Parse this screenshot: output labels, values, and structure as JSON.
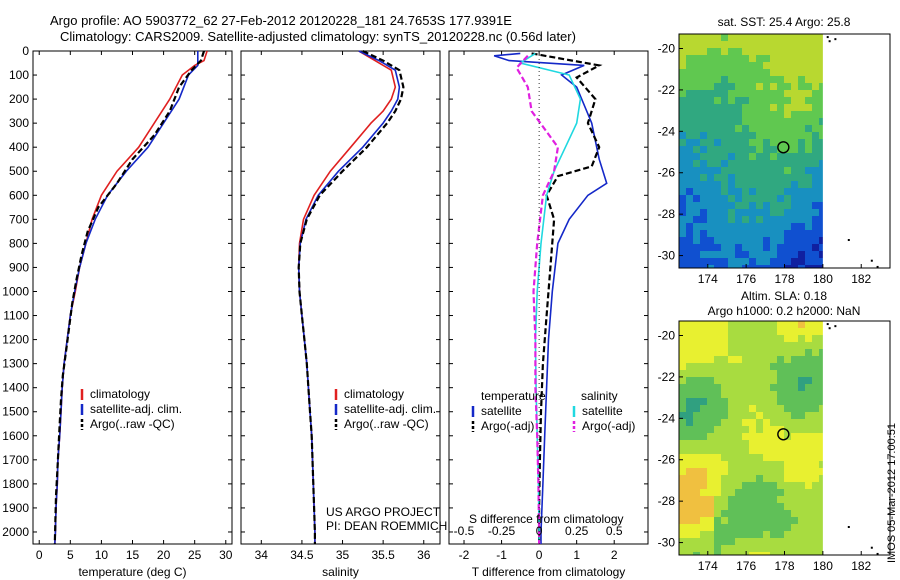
{
  "header": {
    "line1": "Argo profile: AO 5903772_62 27-Feb-2012 20120228_181 24.7653S 177.9391E",
    "line2": "Climatology: CARS2009. Satellite-adjusted climatology: synTS_20120228.nc (0.56d later)"
  },
  "colors": {
    "climatology": "#e02020",
    "satellite": "#1428c8",
    "argo": "#000000",
    "salinity_satellite": "#20d8e0",
    "salinity_argo": "#e020e0"
  },
  "chart_data": [
    {
      "type": "line",
      "panel": "temperature",
      "xlabel": "temperature (deg C)",
      "ylim": [
        0,
        2050
      ],
      "xlim": [
        -1,
        31
      ],
      "xticks": [
        0,
        5,
        10,
        15,
        20,
        25,
        30
      ],
      "yticks": [
        0,
        100,
        200,
        300,
        400,
        500,
        600,
        700,
        800,
        900,
        1000,
        1100,
        1200,
        1300,
        1400,
        1500,
        1600,
        1700,
        1800,
        1900,
        2000
      ],
      "legend": [
        "climatology",
        "satellite-adj. clim.",
        "Argo(..raw -QC)"
      ],
      "series": [
        {
          "name": "climatology",
          "style": "solid",
          "color_key": "climatology",
          "points": [
            [
              27,
              0
            ],
            [
              26.5,
              40
            ],
            [
              25,
              60
            ],
            [
              23,
              100
            ],
            [
              21,
              200
            ],
            [
              18.5,
              300
            ],
            [
              16,
              400
            ],
            [
              12.5,
              500
            ],
            [
              10,
              600
            ],
            [
              8.5,
              700
            ],
            [
              7.5,
              800
            ],
            [
              6.5,
              900
            ],
            [
              5.8,
              1000
            ],
            [
              5,
              1100
            ],
            [
              4.5,
              1200
            ],
            [
              4,
              1300
            ],
            [
              3.7,
              1400
            ],
            [
              3.5,
              1500
            ],
            [
              3.3,
              1600
            ],
            [
              3,
              1700
            ],
            [
              2.9,
              1800
            ],
            [
              2.7,
              1900
            ],
            [
              2.6,
              2000
            ],
            [
              2.5,
              2050
            ]
          ]
        },
        {
          "name": "satellite-adj. clim.",
          "style": "solid",
          "color_key": "satellite",
          "points": [
            [
              25.5,
              0
            ],
            [
              25.5,
              60
            ],
            [
              24,
              100
            ],
            [
              22.5,
              200
            ],
            [
              20,
              300
            ],
            [
              17.5,
              400
            ],
            [
              14,
              500
            ],
            [
              11,
              600
            ],
            [
              9,
              700
            ],
            [
              7.5,
              800
            ],
            [
              6.5,
              900
            ],
            [
              5.7,
              1000
            ],
            [
              5,
              1100
            ],
            [
              4.5,
              1200
            ],
            [
              4,
              1300
            ],
            [
              3.7,
              1400
            ],
            [
              3.5,
              1500
            ],
            [
              3.3,
              1600
            ],
            [
              3,
              1700
            ],
            [
              2.9,
              1800
            ],
            [
              2.7,
              1900
            ],
            [
              2.6,
              2000
            ],
            [
              2.5,
              2050
            ]
          ]
        },
        {
          "name": "Argo(..raw -QC)",
          "style": "dashed",
          "color_key": "argo",
          "points": [
            [
              26.5,
              0
            ],
            [
              26,
              40
            ],
            [
              24.5,
              80
            ],
            [
              22.5,
              150
            ],
            [
              21,
              250
            ],
            [
              18.5,
              350
            ],
            [
              15,
              450
            ],
            [
              12.5,
              550
            ],
            [
              9.5,
              650
            ],
            [
              7.8,
              750
            ],
            [
              6.8,
              850
            ],
            [
              6,
              950
            ],
            [
              5.3,
              1050
            ],
            [
              4.8,
              1150
            ],
            [
              4.3,
              1250
            ],
            [
              3.8,
              1350
            ],
            [
              3.5,
              1450
            ],
            [
              3.3,
              1550
            ],
            [
              3.1,
              1650
            ],
            [
              2.9,
              1750
            ],
            [
              2.7,
              1850
            ],
            [
              2.6,
              1950
            ],
            [
              2.5,
              2050
            ]
          ]
        }
      ]
    },
    {
      "type": "line",
      "panel": "salinity",
      "xlabel": "salinity",
      "ylim": [
        0,
        2050
      ],
      "xlim": [
        33.75,
        36.2
      ],
      "xticks": [
        34,
        34.5,
        35,
        35.5,
        36
      ],
      "legend": [
        "climatology",
        "satellite-adj. clim.",
        "Argo(..raw -QC)"
      ],
      "annotation": [
        "US ARGO PROJECT",
        "PI: DEAN ROEMMICH"
      ],
      "series": [
        {
          "name": "climatology",
          "style": "solid",
          "color_key": "climatology",
          "points": [
            [
              35.2,
              0
            ],
            [
              35.4,
              40
            ],
            [
              35.6,
              80
            ],
            [
              35.65,
              150
            ],
            [
              35.6,
              200
            ],
            [
              35.5,
              250
            ],
            [
              35.35,
              300
            ],
            [
              35.1,
              400
            ],
            [
              34.85,
              500
            ],
            [
              34.65,
              600
            ],
            [
              34.52,
              700
            ],
            [
              34.47,
              800
            ],
            [
              34.46,
              900
            ],
            [
              34.47,
              1000
            ],
            [
              34.5,
              1100
            ],
            [
              34.53,
              1200
            ],
            [
              34.56,
              1300
            ],
            [
              34.58,
              1400
            ],
            [
              34.6,
              1500
            ],
            [
              34.62,
              1600
            ],
            [
              34.63,
              1700
            ],
            [
              34.64,
              1800
            ],
            [
              34.65,
              1900
            ],
            [
              34.66,
              2000
            ],
            [
              34.66,
              2050
            ]
          ]
        },
        {
          "name": "satellite-adj. clim.",
          "style": "solid",
          "color_key": "satellite",
          "points": [
            [
              35.2,
              0
            ],
            [
              35.45,
              40
            ],
            [
              35.65,
              80
            ],
            [
              35.7,
              150
            ],
            [
              35.68,
              200
            ],
            [
              35.6,
              250
            ],
            [
              35.5,
              300
            ],
            [
              35.25,
              400
            ],
            [
              34.95,
              500
            ],
            [
              34.7,
              600
            ],
            [
              34.55,
              700
            ],
            [
              34.48,
              800
            ],
            [
              34.46,
              900
            ],
            [
              34.47,
              1000
            ],
            [
              34.5,
              1100
            ],
            [
              34.53,
              1200
            ],
            [
              34.56,
              1300
            ],
            [
              34.58,
              1400
            ],
            [
              34.6,
              1500
            ],
            [
              34.62,
              1600
            ],
            [
              34.63,
              1700
            ],
            [
              34.64,
              1800
            ],
            [
              34.65,
              1900
            ],
            [
              34.66,
              2000
            ],
            [
              34.66,
              2050
            ]
          ]
        },
        {
          "name": "Argo(..raw -QC)",
          "style": "dashed",
          "color_key": "argo",
          "points": [
            [
              35.25,
              0
            ],
            [
              35.5,
              40
            ],
            [
              35.7,
              80
            ],
            [
              35.75,
              150
            ],
            [
              35.72,
              200
            ],
            [
              35.65,
              250
            ],
            [
              35.55,
              300
            ],
            [
              35.3,
              400
            ],
            [
              35,
              500
            ],
            [
              34.72,
              600
            ],
            [
              34.56,
              700
            ],
            [
              34.48,
              800
            ],
            [
              34.46,
              900
            ],
            [
              34.47,
              1000
            ],
            [
              34.5,
              1100
            ],
            [
              34.53,
              1200
            ],
            [
              34.56,
              1300
            ],
            [
              34.58,
              1400
            ],
            [
              34.6,
              1500
            ],
            [
              34.62,
              1600
            ],
            [
              34.63,
              1700
            ],
            [
              34.64,
              1800
            ],
            [
              34.65,
              1900
            ],
            [
              34.66,
              2000
            ],
            [
              34.66,
              2050
            ]
          ]
        }
      ]
    },
    {
      "type": "line",
      "panel": "difference",
      "xlabel": "T difference from climatology",
      "xlabel_top": "S difference from climatology",
      "ylim": [
        0,
        2050
      ],
      "xlim": [
        -2.4,
        2.9
      ],
      "xticks": [
        -2,
        -1,
        0,
        1,
        2
      ],
      "xticks_top": [
        "-0.5",
        "-0.25",
        "0",
        "0.25",
        "0.5"
      ],
      "legend_left_title": "temperature",
      "legend_left": [
        "satellite",
        "Argo(-adj)"
      ],
      "legend_right_title": "salinity",
      "legend_right": [
        "satellite",
        "Argo(-adj)"
      ],
      "series": [
        {
          "name": "satellite",
          "group": "temperature",
          "style": "solid",
          "color_key": "satellite",
          "points": [
            [
              -0.5,
              10
            ],
            [
              -1.2,
              20
            ],
            [
              -0.8,
              40
            ],
            [
              1.2,
              60
            ],
            [
              0.6,
              100
            ],
            [
              1.0,
              150
            ],
            [
              1.4,
              300
            ],
            [
              1.6,
              450
            ],
            [
              1.8,
              550
            ],
            [
              1.3,
              600
            ],
            [
              0.8,
              700
            ],
            [
              0.5,
              800
            ],
            [
              0.35,
              1000
            ],
            [
              0.25,
              1200
            ],
            [
              0.2,
              1400
            ],
            [
              0.15,
              1600
            ],
            [
              0.1,
              1800
            ],
            [
              0.05,
              2000
            ],
            [
              0.05,
              2050
            ]
          ]
        },
        {
          "name": "Argo(-adj)",
          "group": "temperature",
          "style": "dashed",
          "color_key": "argo",
          "points": [
            [
              -0.2,
              10
            ],
            [
              1.6,
              60
            ],
            [
              1.0,
              110
            ],
            [
              1.5,
              200
            ],
            [
              1.3,
              300
            ],
            [
              1.6,
              400
            ],
            [
              1.4,
              480
            ],
            [
              0.5,
              520
            ],
            [
              0.2,
              600
            ],
            [
              0.4,
              700
            ],
            [
              0.3,
              900
            ],
            [
              0.2,
              1100
            ],
            [
              0.1,
              1300
            ],
            [
              0.05,
              1500
            ],
            [
              0.02,
              1700
            ],
            [
              0,
              1900
            ],
            [
              0,
              2050
            ]
          ]
        },
        {
          "name": "satellite",
          "group": "salinity",
          "style": "solid",
          "color_key": "salinity_satellite",
          "points": [
            [
              -0.1,
              10
            ],
            [
              -0.5,
              50
            ],
            [
              0.8,
              100
            ],
            [
              1.1,
              200
            ],
            [
              1.0,
              300
            ],
            [
              0.7,
              400
            ],
            [
              0.4,
              500
            ],
            [
              0.2,
              600
            ],
            [
              0.05,
              800
            ],
            [
              -0.05,
              1000
            ],
            [
              -0.1,
              1200
            ],
            [
              -0.08,
              1400
            ],
            [
              -0.05,
              1600
            ],
            [
              -0.02,
              1800
            ],
            [
              0,
              2000
            ],
            [
              0,
              2050
            ]
          ]
        },
        {
          "name": "Argo(-adj)",
          "group": "salinity",
          "style": "dashed",
          "color_key": "salinity_argo",
          "points": [
            [
              -0.3,
              20
            ],
            [
              -0.6,
              70
            ],
            [
              -0.3,
              150
            ],
            [
              -0.2,
              250
            ],
            [
              0.5,
              400
            ],
            [
              0.4,
              500
            ],
            [
              0.1,
              600
            ],
            [
              -0.05,
              800
            ],
            [
              -0.15,
              1000
            ],
            [
              -0.1,
              1200
            ],
            [
              -0.1,
              1400
            ],
            [
              -0.05,
              1600
            ],
            [
              -0.02,
              1800
            ],
            [
              0,
              2000
            ],
            [
              0,
              2050
            ]
          ]
        }
      ]
    },
    {
      "type": "heatmap",
      "panel": "sst_map",
      "title": "sat. SST: 25.4 Argo: 25.8",
      "xlim": [
        172.5,
        183.5
      ],
      "ylim": [
        -30.6,
        -19.3
      ],
      "xticks": [
        174,
        176,
        178,
        180,
        182
      ],
      "yticks": [
        -20,
        -22,
        -24,
        -26,
        -28,
        -30
      ],
      "marker": [
        177.94,
        -24.77
      ],
      "data_extent_lon": [
        172.5,
        180
      ],
      "value_range": [
        "warm",
        "cool"
      ],
      "palette": [
        "#b8d830",
        "#60c850",
        "#30a880",
        "#1890c0",
        "#1050d0",
        "#1020a0"
      ]
    },
    {
      "type": "heatmap",
      "panel": "sla_map",
      "title_line1": "Altim. SLA: 0.18",
      "title_line2": "Argo h1000: 0.2 h2000: NaN",
      "xlim": [
        172.5,
        183.5
      ],
      "ylim": [
        -30.6,
        -19.3
      ],
      "xticks": [
        174,
        176,
        178,
        180,
        182
      ],
      "yticks": [
        -20,
        -22,
        -24,
        -26,
        -28,
        -30
      ],
      "marker": [
        177.94,
        -24.77
      ],
      "data_extent_lon": [
        172.5,
        180
      ],
      "palette": [
        "#30a080",
        "#60c058",
        "#a8dc40",
        "#e8f030",
        "#f0c040"
      ]
    }
  ],
  "footer": {
    "stamp": "IMOS 05-Mar-2012 17:00:51"
  }
}
